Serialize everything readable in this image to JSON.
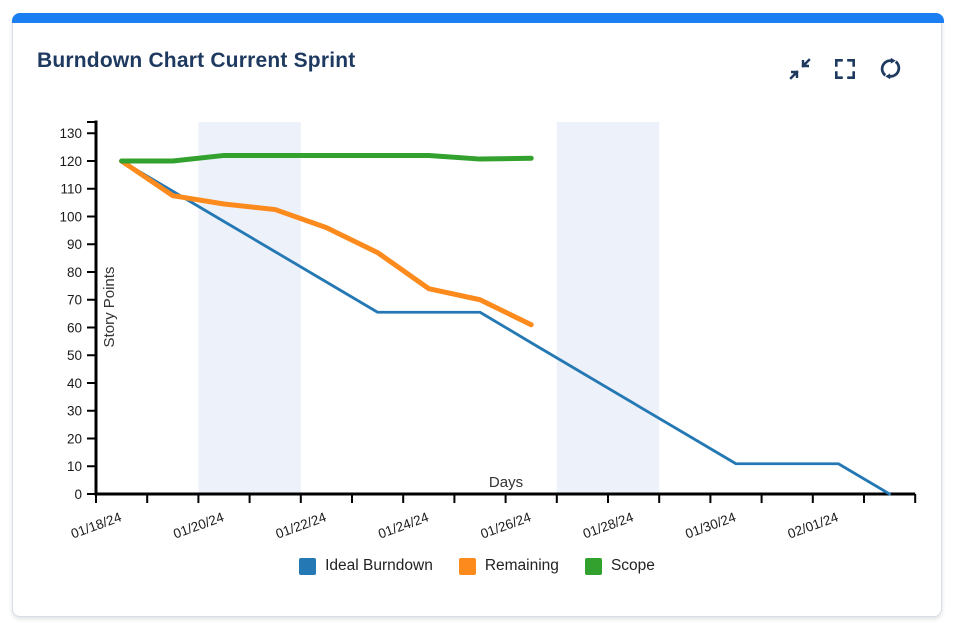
{
  "card": {
    "title": "Burndown Chart Current Sprint",
    "title_color": "#1f3a60",
    "accent_color": "#1b7ff2",
    "icon_color": "#1e3a5f",
    "icons": [
      "compress-icon",
      "fullscreen-icon",
      "refresh-icon"
    ]
  },
  "chart_data": {
    "type": "line",
    "title": "Burndown Chart Current Sprint",
    "xlabel": "Days",
    "ylabel": "Story Points",
    "ylim": [
      0,
      130
    ],
    "y_ticks": [
      0,
      10,
      20,
      30,
      40,
      50,
      60,
      70,
      80,
      90,
      100,
      110,
      120,
      130
    ],
    "x_range_days": [
      0,
      16
    ],
    "x_ticks": [
      {
        "day": 0,
        "label": "01/18/24"
      },
      {
        "day": 2,
        "label": "01/20/24"
      },
      {
        "day": 4,
        "label": "01/22/24"
      },
      {
        "day": 6,
        "label": "01/24/24"
      },
      {
        "day": 8,
        "label": "01/26/24"
      },
      {
        "day": 10,
        "label": "01/28/24"
      },
      {
        "day": 12,
        "label": "01/30/24"
      },
      {
        "day": 14,
        "label": "02/01/24"
      }
    ],
    "minor_tick_every_day": 1,
    "grid": false,
    "weekend_bands_days": [
      [
        2,
        4
      ],
      [
        9,
        11
      ]
    ],
    "band_color": "#edf1f9",
    "axis_color": "#000000",
    "tick_label_color": "#1a1a1a",
    "axis_title_color": "#333333",
    "legend_position": "bottom",
    "series": [
      {
        "name": "Ideal Burndown",
        "color": "#2478b4",
        "line_width": 2.8,
        "points": [
          [
            0.5,
            120
          ],
          [
            1.5,
            109.1
          ],
          [
            2.5,
            98.2
          ],
          [
            3.5,
            87.3
          ],
          [
            4.5,
            76.4
          ],
          [
            5.5,
            65.5
          ],
          [
            6.5,
            65.5
          ],
          [
            7.5,
            65.5
          ],
          [
            8.5,
            54.5
          ],
          [
            9.5,
            43.6
          ],
          [
            10.5,
            32.7
          ],
          [
            11.5,
            21.8
          ],
          [
            12.5,
            10.9
          ],
          [
            13.5,
            10.9
          ],
          [
            14.5,
            10.9
          ],
          [
            15.5,
            0
          ]
        ]
      },
      {
        "name": "Remaining",
        "color": "#fc8a1d",
        "line_width": 5,
        "points": [
          [
            0.5,
            120
          ],
          [
            1.5,
            107.5
          ],
          [
            2.5,
            104.5
          ],
          [
            3.5,
            102.5
          ],
          [
            4.5,
            96
          ],
          [
            5.5,
            87
          ],
          [
            6.5,
            74
          ],
          [
            7.5,
            70
          ],
          [
            8.5,
            61
          ]
        ]
      },
      {
        "name": "Scope",
        "color": "#33a12e",
        "line_width": 5,
        "points": [
          [
            0.5,
            120
          ],
          [
            1.5,
            120
          ],
          [
            2.5,
            122
          ],
          [
            3.5,
            122
          ],
          [
            4.5,
            122
          ],
          [
            5.5,
            122
          ],
          [
            6.5,
            122
          ],
          [
            7.5,
            120.7
          ],
          [
            8.5,
            121
          ]
        ]
      }
    ]
  }
}
